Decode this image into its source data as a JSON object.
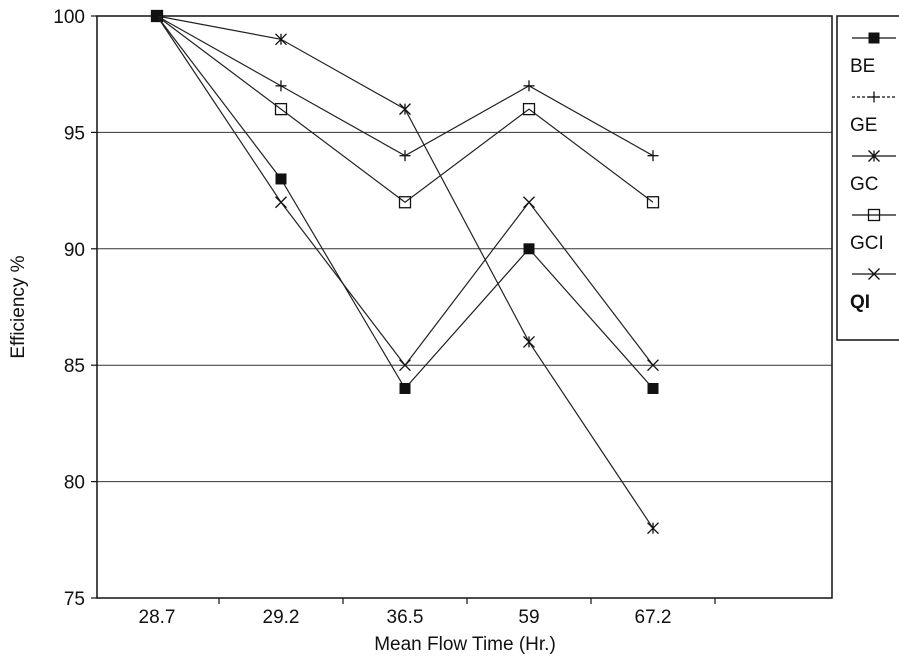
{
  "chart_data": {
    "type": "line",
    "xlabel": "Mean  Flow Time (Hr.)",
    "ylabel": "Efficiency %",
    "categories": [
      "28.7",
      "29.2",
      "36.5",
      "59",
      "67.2"
    ],
    "ylim": [
      75,
      100
    ],
    "yticks": [
      75,
      80,
      85,
      90,
      95,
      100
    ],
    "grid": "horizontal",
    "legend_position": "right",
    "series": [
      {
        "name": "BE",
        "marker": "square-filled",
        "values": [
          100,
          93,
          84,
          90,
          84
        ]
      },
      {
        "name": "GE",
        "marker": "plus",
        "values": [
          100,
          97,
          94,
          97,
          94
        ]
      },
      {
        "name": "GC",
        "marker": "star",
        "values": [
          100,
          99,
          96,
          86,
          78
        ]
      },
      {
        "name": "GCI",
        "marker": "square-open",
        "values": [
          100,
          96,
          92,
          96,
          92
        ]
      },
      {
        "name": "QI",
        "marker": "cross",
        "values": [
          100,
          92,
          85,
          92,
          85
        ]
      }
    ]
  }
}
